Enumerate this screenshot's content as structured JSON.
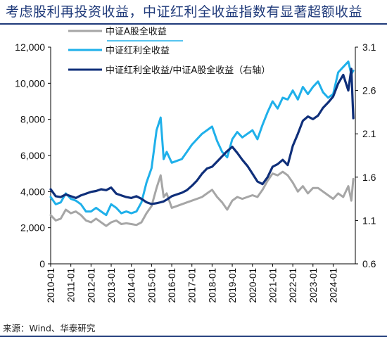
{
  "title": "考虑股利再投资收益，中证红利全收益指数有显著超额收益",
  "source": "来源：Wind、华泰研究",
  "chart_data": {
    "type": "line",
    "ylim_left": [
      0,
      12000
    ],
    "yticks_left": [
      "0",
      "2,000",
      "4,000",
      "6,000",
      "8,000",
      "10,000",
      "12,000"
    ],
    "ylim_right": [
      0.6,
      3.1
    ],
    "yticks_right": [
      "0.6",
      "1.1",
      "1.6",
      "2.1",
      "2.6",
      "3.1"
    ],
    "x_ticks": [
      "2010-01",
      "2011-01",
      "2012-01",
      "2013-01",
      "2014-01",
      "2015-01",
      "2016-01",
      "2017-01",
      "2018-01",
      "2019-01",
      "2020-01",
      "2021-01",
      "2022-01",
      "2023-01",
      "2024-01"
    ],
    "x_range": [
      2010.0,
      2025.1
    ],
    "legend_position": "top-left",
    "series": [
      {
        "name": "中证A股全收益",
        "axis": "left",
        "color": "#a6a6a6",
        "x": [
          2010.0,
          2010.25,
          2010.5,
          2010.75,
          2011.0,
          2011.25,
          2011.5,
          2011.75,
          2012.0,
          2012.25,
          2012.5,
          2012.75,
          2013.0,
          2013.25,
          2013.5,
          2013.75,
          2014.0,
          2014.25,
          2014.5,
          2014.75,
          2015.0,
          2015.25,
          2015.45,
          2015.6,
          2015.75,
          2016.0,
          2016.25,
          2016.5,
          2016.75,
          2017.0,
          2017.25,
          2017.5,
          2017.75,
          2018.0,
          2018.25,
          2018.5,
          2018.75,
          2019.0,
          2019.25,
          2019.5,
          2019.75,
          2020.0,
          2020.25,
          2020.5,
          2020.75,
          2021.0,
          2021.25,
          2021.5,
          2021.75,
          2022.0,
          2022.25,
          2022.5,
          2022.75,
          2023.0,
          2023.25,
          2023.5,
          2023.75,
          2024.0,
          2024.25,
          2024.5,
          2024.75,
          2024.9,
          2025.0
        ],
        "y": [
          2700,
          2400,
          2500,
          3000,
          2800,
          2900,
          2700,
          2400,
          2300,
          2500,
          2300,
          2100,
          2300,
          2400,
          2200,
          2250,
          2200,
          2150,
          2300,
          2800,
          3200,
          4200,
          4900,
          3700,
          3900,
          3100,
          3200,
          3300,
          3400,
          3500,
          3600,
          3700,
          3900,
          4100,
          3700,
          3400,
          3000,
          3500,
          3700,
          3600,
          3700,
          3800,
          3700,
          4100,
          4600,
          5000,
          4900,
          5100,
          4900,
          4500,
          4000,
          4300,
          3900,
          4200,
          4200,
          4000,
          3800,
          3600,
          3900,
          3700,
          4300,
          3500,
          4700
        ]
      },
      {
        "name": "中证红利全收益",
        "axis": "left",
        "color": "#1fb0ea",
        "x": [
          2010.0,
          2010.25,
          2010.5,
          2010.75,
          2011.0,
          2011.25,
          2011.5,
          2011.75,
          2012.0,
          2012.25,
          2012.5,
          2012.75,
          2013.0,
          2013.25,
          2013.5,
          2013.75,
          2014.0,
          2014.25,
          2014.5,
          2014.75,
          2015.0,
          2015.25,
          2015.45,
          2015.6,
          2015.75,
          2016.0,
          2016.25,
          2016.5,
          2016.75,
          2017.0,
          2017.25,
          2017.5,
          2017.75,
          2018.0,
          2018.25,
          2018.5,
          2018.75,
          2019.0,
          2019.25,
          2019.5,
          2019.75,
          2020.0,
          2020.25,
          2020.5,
          2020.75,
          2021.0,
          2021.25,
          2021.5,
          2021.75,
          2022.0,
          2022.25,
          2022.5,
          2022.75,
          2023.0,
          2023.25,
          2023.5,
          2023.75,
          2024.0,
          2024.25,
          2024.5,
          2024.75,
          2024.9,
          2025.0
        ],
        "y": [
          3700,
          3300,
          3400,
          3900,
          3600,
          3500,
          3300,
          2900,
          2900,
          3100,
          2900,
          2700,
          3300,
          3100,
          2800,
          2900,
          2800,
          2900,
          3400,
          4500,
          5300,
          7400,
          8100,
          5800,
          6200,
          5600,
          5700,
          5800,
          6200,
          6600,
          6900,
          7200,
          7400,
          7600,
          6800,
          6200,
          5900,
          6900,
          7300,
          7000,
          7200,
          7400,
          6900,
          7700,
          8400,
          9000,
          8600,
          9200,
          9100,
          9600,
          9100,
          9800,
          9400,
          9800,
          10100,
          9500,
          9200,
          9400,
          10600,
          10900,
          11200,
          10500,
          10700
        ]
      },
      {
        "name": "中证红利全收益/中证A股全收益（右轴）",
        "axis": "right",
        "color": "#0f2f7a",
        "x": [
          2010.0,
          2010.25,
          2010.5,
          2010.75,
          2011.0,
          2011.25,
          2011.5,
          2011.75,
          2012.0,
          2012.25,
          2012.5,
          2012.75,
          2013.0,
          2013.25,
          2013.5,
          2013.75,
          2014.0,
          2014.25,
          2014.5,
          2014.75,
          2015.0,
          2015.25,
          2015.45,
          2015.6,
          2015.75,
          2016.0,
          2016.25,
          2016.5,
          2016.75,
          2017.0,
          2017.25,
          2017.5,
          2017.75,
          2018.0,
          2018.25,
          2018.5,
          2018.75,
          2019.0,
          2019.25,
          2019.5,
          2019.75,
          2020.0,
          2020.25,
          2020.5,
          2020.75,
          2021.0,
          2021.25,
          2021.5,
          2021.75,
          2022.0,
          2022.25,
          2022.5,
          2022.75,
          2023.0,
          2023.25,
          2023.5,
          2023.75,
          2024.0,
          2024.25,
          2024.5,
          2024.75,
          2024.9,
          2025.0
        ],
        "y": [
          1.46,
          1.38,
          1.37,
          1.4,
          1.38,
          1.36,
          1.39,
          1.41,
          1.43,
          1.44,
          1.46,
          1.45,
          1.48,
          1.41,
          1.39,
          1.37,
          1.36,
          1.38,
          1.35,
          1.31,
          1.29,
          1.3,
          1.31,
          1.32,
          1.34,
          1.38,
          1.4,
          1.42,
          1.45,
          1.5,
          1.56,
          1.64,
          1.7,
          1.72,
          1.78,
          1.84,
          1.9,
          1.95,
          1.88,
          1.8,
          1.73,
          1.64,
          1.55,
          1.52,
          1.6,
          1.72,
          1.75,
          1.8,
          1.74,
          1.96,
          2.1,
          2.25,
          2.3,
          2.27,
          2.31,
          2.4,
          2.46,
          2.53,
          2.68,
          2.78,
          2.6,
          2.85,
          2.28
        ]
      }
    ]
  }
}
